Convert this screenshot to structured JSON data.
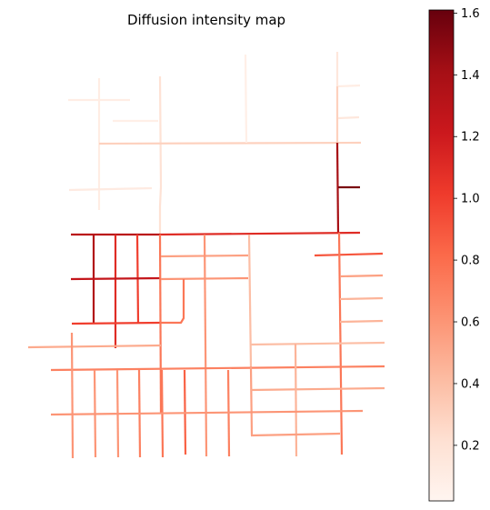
{
  "chart_data": {
    "type": "network_heatmap",
    "title": "Diffusion intensity map",
    "colormap": "Reds",
    "grid": false,
    "colorbar": {
      "position": "right",
      "range": [
        0.02,
        1.61
      ],
      "ticks": [
        0.2,
        0.4,
        0.6,
        0.8,
        1.0,
        1.2,
        1.4,
        1.6
      ],
      "tick_labels": [
        "0.2",
        "0.4",
        "0.6",
        "0.8",
        "1.0",
        "1.2",
        "1.4",
        "1.6"
      ]
    },
    "segments": [
      {
        "p": [
          [
            75,
            110
          ],
          [
            143,
            110
          ]
        ],
        "v": 0.1
      },
      {
        "p": [
          [
            109,
            86
          ],
          [
            109,
            231
          ]
        ],
        "v": 0.1
      },
      {
        "p": [
          [
            124,
            133
          ],
          [
            174,
            133
          ]
        ],
        "v": 0.08
      },
      {
        "p": [
          [
            176,
            84
          ],
          [
            177,
            205
          ],
          [
            176,
            227
          ],
          [
            176,
            258
          ]
        ],
        "v": 0.2
      },
      {
        "p": [
          [
            109,
            158
          ],
          [
            397,
            157
          ]
        ],
        "v": 0.3
      },
      {
        "p": [
          [
            270,
            60
          ],
          [
            271,
            157
          ]
        ],
        "v": 0.08
      },
      {
        "p": [
          [
            371,
            57
          ],
          [
            371,
            95
          ]
        ],
        "v": 0.15
      },
      {
        "p": [
          [
            371,
            95
          ],
          [
            371,
            157
          ]
        ],
        "v": 0.3
      },
      {
        "p": [
          [
            371,
            157
          ],
          [
            372,
            256
          ]
        ],
        "v": 1.4
      },
      {
        "p": [
          [
            372,
            95
          ],
          [
            396,
            94
          ]
        ],
        "v": 0.1
      },
      {
        "p": [
          [
            372,
            130
          ],
          [
            395,
            129
          ]
        ],
        "v": 0.15
      },
      {
        "p": [
          [
            372,
            206
          ],
          [
            396,
            206
          ]
        ],
        "v": 1.55
      },
      {
        "p": [
          [
            76,
            209
          ],
          [
            167,
            207
          ]
        ],
        "v": 0.12
      },
      {
        "p": [
          [
            78,
            258
          ],
          [
            176,
            258
          ]
        ],
        "v": 1.3
      },
      {
        "p": [
          [
            176,
            258
          ],
          [
            396,
            256
          ]
        ],
        "v": 1.1
      },
      {
        "p": [
          [
            103,
            258
          ],
          [
            103,
            356
          ]
        ],
        "v": 1.35
      },
      {
        "p": [
          [
            127,
            258
          ],
          [
            127,
            383
          ]
        ],
        "v": 1.1
      },
      {
        "p": [
          [
            151,
            258
          ],
          [
            152,
            356
          ]
        ],
        "v": 1.0
      },
      {
        "p": [
          [
            78,
            307
          ],
          [
            177,
            306
          ]
        ],
        "v": 1.25
      },
      {
        "p": [
          [
            79,
            356
          ],
          [
            176,
            355
          ]
        ],
        "v": 1.0
      },
      {
        "p": [
          [
            176,
            258
          ],
          [
            177,
            454
          ]
        ],
        "v": 0.75
      },
      {
        "p": [
          [
            177,
            282
          ],
          [
            273,
            281
          ]
        ],
        "v": 0.55
      },
      {
        "p": [
          [
            177,
            307
          ],
          [
            273,
            306
          ]
        ],
        "v": 0.6
      },
      {
        "p": [
          [
            177,
            355
          ],
          [
            199,
            355
          ],
          [
            202,
            350
          ],
          [
            202,
            307
          ]
        ],
        "v": 0.75
      },
      {
        "p": [
          [
            225,
            258
          ],
          [
            227,
            502
          ]
        ],
        "v": 0.6
      },
      {
        "p": [
          [
            274,
            258
          ],
          [
            276,
            404
          ]
        ],
        "v": 0.4
      },
      {
        "p": [
          [
            346,
            281
          ],
          [
            421,
            279
          ]
        ],
        "v": 0.9
      },
      {
        "p": [
          [
            373,
            256
          ],
          [
            376,
            500
          ]
        ],
        "v": 0.75
      },
      {
        "p": [
          [
            374,
            304
          ],
          [
            421,
            303
          ]
        ],
        "v": 0.55
      },
      {
        "p": [
          [
            374,
            329
          ],
          [
            421,
            328
          ]
        ],
        "v": 0.45
      },
      {
        "p": [
          [
            374,
            354
          ],
          [
            421,
            353
          ]
        ],
        "v": 0.45
      },
      {
        "p": [
          [
            276,
            379
          ],
          [
            423,
            377
          ]
        ],
        "v": 0.4
      },
      {
        "p": [
          [
            31,
            382
          ],
          [
            177,
            380
          ]
        ],
        "v": 0.5
      },
      {
        "p": [
          [
            56,
            407
          ],
          [
            423,
            403
          ]
        ],
        "v": 0.7
      },
      {
        "p": [
          [
            79,
            366
          ],
          [
            80,
            504
          ]
        ],
        "v": 0.6
      },
      {
        "p": [
          [
            104,
            407
          ],
          [
            105,
            503
          ]
        ],
        "v": 0.6
      },
      {
        "p": [
          [
            129,
            407
          ],
          [
            130,
            503
          ]
        ],
        "v": 0.6
      },
      {
        "p": [
          [
            153,
            407
          ],
          [
            154,
            503
          ]
        ],
        "v": 0.7
      },
      {
        "p": [
          [
            178,
            407
          ],
          [
            179,
            503
          ]
        ],
        "v": 0.75
      },
      {
        "p": [
          [
            203,
            407
          ],
          [
            204,
            500
          ]
        ],
        "v": 0.85
      },
      {
        "p": [
          [
            251,
            407
          ],
          [
            252,
            502
          ]
        ],
        "v": 0.7
      },
      {
        "p": [
          [
            276,
            404
          ],
          [
            277,
            479
          ]
        ],
        "v": 0.55
      },
      {
        "p": [
          [
            276,
            429
          ],
          [
            423,
            427
          ]
        ],
        "v": 0.5
      },
      {
        "p": [
          [
            325,
            378
          ],
          [
            326,
            502
          ]
        ],
        "v": 0.45
      },
      {
        "p": [
          [
            56,
            456
          ],
          [
            399,
            452
          ]
        ],
        "v": 0.6
      },
      {
        "p": [
          [
            276,
            479
          ],
          [
            374,
            477
          ]
        ],
        "v": 0.55
      }
    ]
  }
}
